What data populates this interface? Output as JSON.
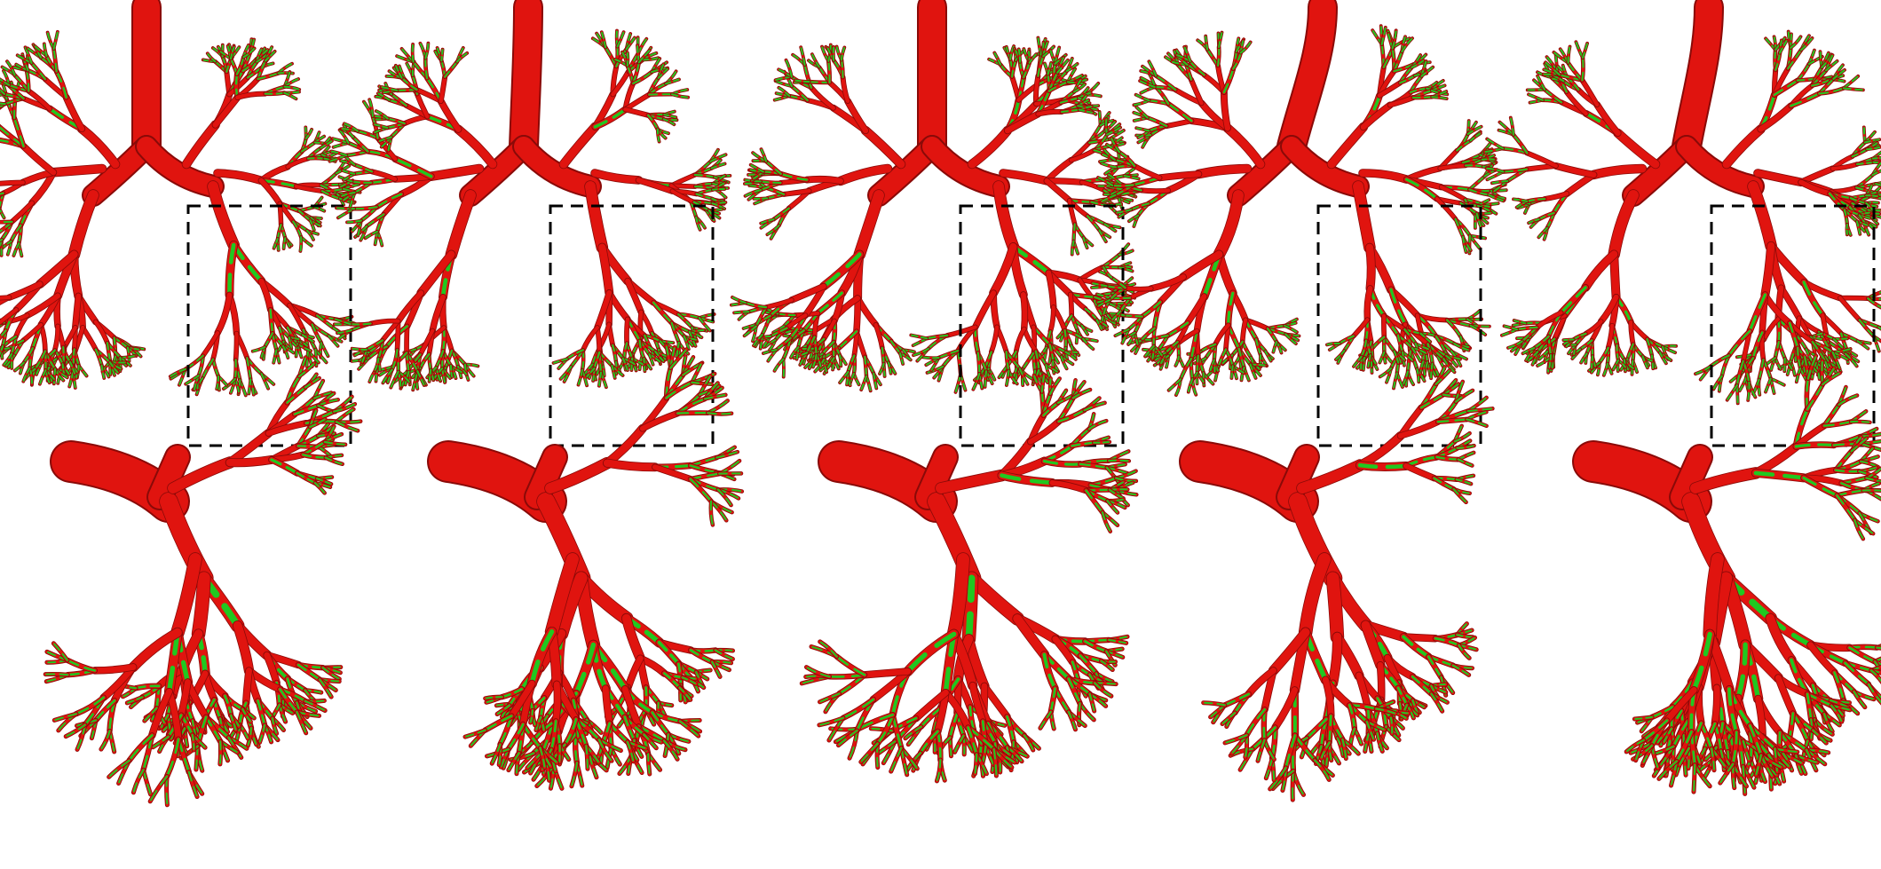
{
  "figure": {
    "panels": [
      {
        "id": "case-1"
      },
      {
        "id": "case-2"
      },
      {
        "id": "case-3"
      },
      {
        "id": "case-4"
      },
      {
        "id": "case-5"
      }
    ],
    "colors": {
      "airway_main": "#e0140f",
      "airway_edge": "#8a0a08",
      "airway_highlight": "#20c820",
      "zoom_box": "#000000",
      "background": "#ffffff"
    }
  }
}
